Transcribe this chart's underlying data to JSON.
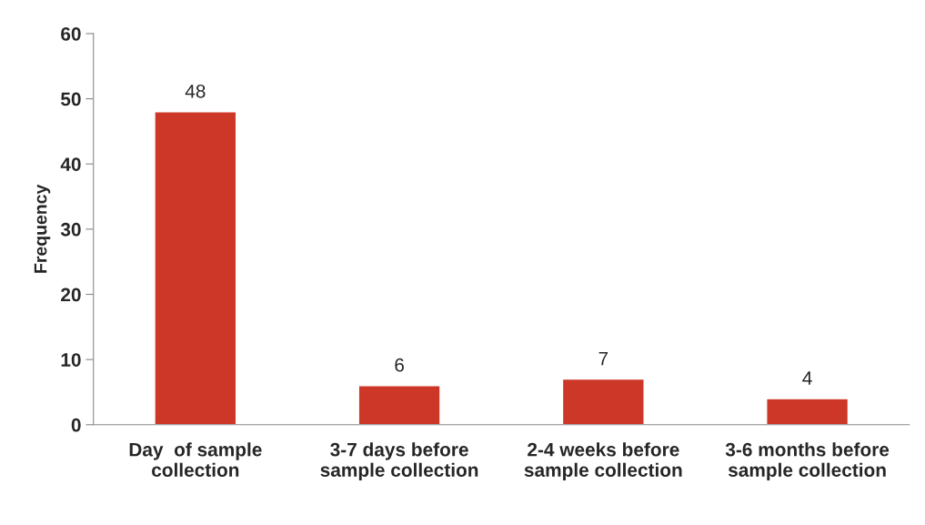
{
  "chart_data": {
    "type": "bar",
    "ylabel": "Frequency",
    "categories": [
      "Day  of sample\ncollection",
      "3-7 days before\nsample collection",
      "2-4 weeks before\nsample collection",
      "3-6 months before\nsample collection"
    ],
    "values": [
      48,
      6,
      7,
      4
    ],
    "color": "#cd3727",
    "ylim": [
      0,
      60
    ],
    "yticks": [
      0,
      10,
      20,
      30,
      40,
      50,
      60
    ],
    "grid": false,
    "legend": false,
    "data_labels": true
  }
}
